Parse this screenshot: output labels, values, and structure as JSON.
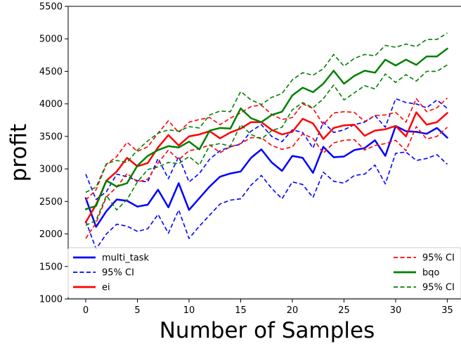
{
  "chart_data": {
    "type": "line",
    "xlabel": "Number of Samples",
    "ylabel": "profit",
    "xlim": [
      -2,
      36.5
    ],
    "ylim": [
      1000,
      5500
    ],
    "xticks": [
      0,
      5,
      10,
      15,
      20,
      25,
      30,
      35
    ],
    "yticks": [
      1000,
      1500,
      2000,
      2500,
      3000,
      3500,
      4000,
      4500,
      5000,
      5500
    ],
    "grid": false,
    "legend": "bottom",
    "x": [
      0,
      1,
      2,
      3,
      4,
      5,
      6,
      7,
      8,
      9,
      10,
      11,
      12,
      13,
      14,
      15,
      16,
      17,
      18,
      19,
      20,
      21,
      22,
      23,
      24,
      25,
      26,
      27,
      28,
      29,
      30,
      31,
      32,
      33,
      34,
      35
    ],
    "series": [
      {
        "name": "multi_task",
        "color": "#0000ff",
        "style": "solid",
        "width": 2.5,
        "values": [
          2550,
          2110,
          2350,
          2530,
          2510,
          2420,
          2450,
          2680,
          2410,
          2780,
          2370,
          2550,
          2730,
          2880,
          2930,
          2960,
          3170,
          3300,
          3100,
          2970,
          3200,
          3170,
          2940,
          3340,
          3180,
          3190,
          3290,
          3320,
          3440,
          3200,
          3660,
          3580,
          3570,
          3540,
          3630,
          3480
        ]
      },
      {
        "name": "95% CI",
        "color": "#0000ff",
        "style": "dashed",
        "width": 1.6,
        "values": [
          2920,
          2530,
          2650,
          2920,
          2880,
          2820,
          2800,
          3160,
          2850,
          3190,
          2800,
          2930,
          3150,
          3280,
          3340,
          3380,
          3580,
          3680,
          3500,
          3420,
          3600,
          3560,
          3320,
          3720,
          3560,
          3600,
          3680,
          3720,
          3820,
          3640,
          4080,
          4020,
          4000,
          3940,
          4060,
          3930
        ]
      },
      {
        "name": "",
        "color": "#0000ff",
        "style": "dashed",
        "width": 1.6,
        "values": [
          2200,
          1770,
          2000,
          2150,
          2120,
          2040,
          2080,
          2300,
          2010,
          2370,
          1930,
          2120,
          2290,
          2460,
          2520,
          2540,
          2750,
          2900,
          2700,
          2540,
          2800,
          2760,
          2560,
          2950,
          2810,
          2780,
          2900,
          2920,
          3060,
          2770,
          3240,
          3260,
          3130,
          3160,
          3220,
          3070
        ]
      },
      {
        "name": "ei",
        "color": "#ff0000",
        "style": "solid",
        "width": 2.5,
        "values": [
          2180,
          2450,
          2820,
          2960,
          3170,
          3040,
          3090,
          3330,
          3520,
          3360,
          3500,
          3530,
          3580,
          3470,
          3560,
          3620,
          3720,
          3720,
          3600,
          3530,
          3570,
          3770,
          3700,
          3460,
          3630,
          3670,
          3680,
          3510,
          3590,
          3610,
          3660,
          3500,
          3870,
          3680,
          3720,
          3860
        ]
      },
      {
        "name": "95% CI",
        "color": "#ff0000",
        "style": "dashed",
        "width": 1.6,
        "values": [
          2520,
          2680,
          3070,
          3190,
          3410,
          3270,
          3340,
          3550,
          3740,
          3560,
          3720,
          3760,
          3790,
          3680,
          3780,
          3860,
          3960,
          3980,
          3840,
          3760,
          3790,
          4000,
          3930,
          3680,
          3860,
          3880,
          3870,
          3730,
          3820,
          3830,
          3870,
          3720,
          4080,
          3880,
          3940,
          4090
        ]
      },
      {
        "name": "",
        "color": "#ff0000",
        "style": "dashed",
        "width": 1.6,
        "values": [
          1930,
          2170,
          2570,
          2720,
          2930,
          2800,
          2840,
          3090,
          3290,
          3140,
          3280,
          3310,
          3370,
          3250,
          3340,
          3390,
          3480,
          3480,
          3360,
          3300,
          3340,
          3540,
          3470,
          3240,
          3400,
          3440,
          3450,
          3290,
          3360,
          3390,
          3440,
          3280,
          3650,
          3460,
          3500,
          3640
        ]
      },
      {
        "name": "bqo",
        "color": "#008000",
        "style": "solid",
        "width": 2.5,
        "values": [
          2380,
          2430,
          2820,
          2730,
          2780,
          3050,
          3200,
          3290,
          3350,
          3330,
          3420,
          3300,
          3590,
          3630,
          3620,
          3930,
          3780,
          3720,
          3830,
          3880,
          4130,
          4250,
          4180,
          4310,
          4510,
          4310,
          4430,
          4510,
          4480,
          4680,
          4590,
          4680,
          4600,
          4730,
          4730,
          4850
        ]
      },
      {
        "name": "95% CI",
        "color": "#008000",
        "style": "dashed",
        "width": 1.6,
        "values": [
          2640,
          2720,
          3080,
          3130,
          3100,
          3290,
          3430,
          3550,
          3600,
          3580,
          3650,
          3630,
          3830,
          3890,
          3880,
          4190,
          4060,
          3990,
          4100,
          4160,
          4370,
          4480,
          4440,
          4540,
          4760,
          4580,
          4700,
          4760,
          4740,
          4900,
          4870,
          4920,
          4880,
          4990,
          4990,
          5090
        ]
      },
      {
        "name": "",
        "color": "#008000",
        "style": "dashed",
        "width": 1.6,
        "values": [
          2130,
          2210,
          2590,
          2370,
          2530,
          2800,
          2990,
          3030,
          3100,
          3080,
          3190,
          3060,
          3360,
          3390,
          3350,
          3680,
          3530,
          3460,
          3590,
          3640,
          3910,
          4020,
          3940,
          4080,
          4290,
          4060,
          4170,
          4280,
          4230,
          4460,
          4330,
          4450,
          4350,
          4500,
          4500,
          4600
        ]
      }
    ],
    "legend_entries": [
      {
        "label": "multi_task",
        "color": "#0000ff",
        "style": "solid"
      },
      {
        "label": "95% CI",
        "color": "#0000ff",
        "style": "dashed"
      },
      {
        "label": "ei",
        "color": "#ff0000",
        "style": "solid"
      },
      {
        "label": "95% CI",
        "color": "#ff0000",
        "style": "dashed"
      },
      {
        "label": "bqo",
        "color": "#008000",
        "style": "solid"
      },
      {
        "label": "95% CI",
        "color": "#008000",
        "style": "dashed"
      }
    ]
  }
}
